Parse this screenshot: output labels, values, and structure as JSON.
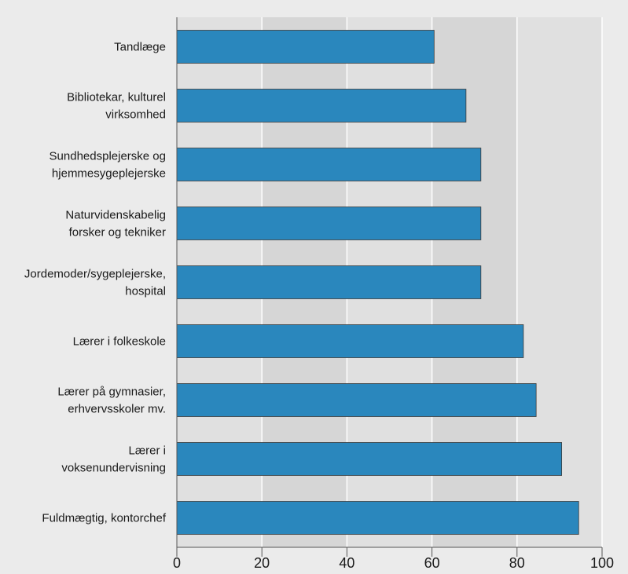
{
  "chart_data": {
    "type": "bar",
    "orientation": "horizontal",
    "title": "",
    "xlabel": "",
    "ylabel": "",
    "categories": [
      [
        "Tandlæge"
      ],
      [
        "Bibliotekar, kulturel",
        "virksomhed"
      ],
      [
        "Sundhedsplejerske og",
        "hjemmesygeplejerske"
      ],
      [
        "Naturvidenskabelig",
        "forsker og tekniker"
      ],
      [
        "Jordemoder/sygeplejerske,",
        "hospital"
      ],
      [
        "Lærer i folkeskole"
      ],
      [
        "Lærer på gymnasier,",
        "erhvervsskoler mv."
      ],
      [
        "Lærer i",
        "voksenundervisning"
      ],
      [
        "Fuldmægtig, kontorchef"
      ]
    ],
    "values": [
      60.5,
      68,
      71.5,
      71.5,
      71.5,
      81.5,
      84.5,
      90.5,
      94.5
    ],
    "xlim": [
      0,
      100
    ],
    "xticks": [
      "0",
      "20",
      "40",
      "60",
      "80",
      "100"
    ],
    "grid": "vertical",
    "colors": {
      "bar": "#2a87bd",
      "bar_edge": "#3a3a3a",
      "plot_bg": "#e0e0e0",
      "plot_bg_alt": "#d6d6d6",
      "page_bg": "#ebebeb",
      "grid": "#ffffff",
      "axis": "#555555",
      "text": "#1a1a1a"
    }
  }
}
